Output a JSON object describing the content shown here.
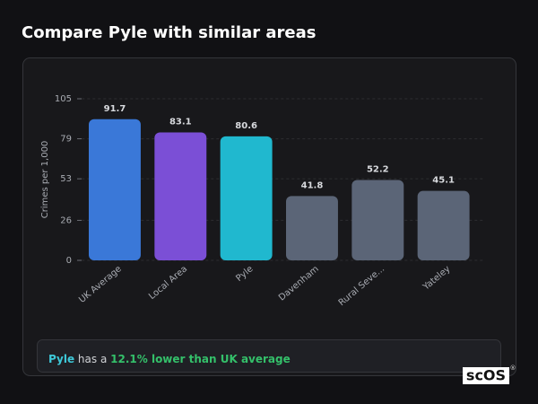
{
  "title": "Compare Pyle with similar areas",
  "chart_data": {
    "type": "bar",
    "y_label": "Crimes per 1,000",
    "categories": [
      "UK Average",
      "Local Area",
      "Pyle",
      "Davenham",
      "Rural Seve...",
      "Yateley"
    ],
    "values": [
      91.7,
      83.1,
      80.6,
      41.8,
      52.2,
      45.1
    ],
    "colors": [
      "#3a78d8",
      "#7b4fd6",
      "#20b8cf",
      "#5b6577",
      "#5b6577",
      "#5b6577"
    ],
    "ylim": [
      0,
      105
    ],
    "yticks": [
      0,
      26,
      53,
      79,
      105
    ],
    "grid": true
  },
  "note": {
    "place": "Pyle",
    "text": "has a",
    "highlight": "12.1% lower than UK average"
  },
  "logo": {
    "text": "scOS",
    "mark": "®"
  }
}
